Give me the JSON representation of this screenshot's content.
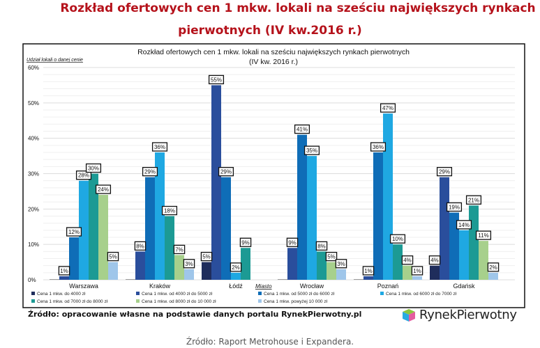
{
  "header": {
    "title_line1": "Rozkład ofertowych cen 1 mkw. lokali na sześciu największych rynkach",
    "title_line2": "pierwotnych (IV kw.2016 r.)"
  },
  "chart_data": {
    "type": "bar",
    "title_line1": "Rozkład ofertowych cen 1 mkw. lokali na sześciu największych rynkach pierwotnych",
    "title_line2": "(IV kw. 2016 r.)",
    "ylabel": "Udział lokali o danej cenie",
    "xlabel": "Miasto",
    "ylim": [
      0,
      60
    ],
    "yticks": [
      "0%",
      "10%",
      "20%",
      "30%",
      "40%",
      "50%",
      "60%"
    ],
    "grid": true,
    "legend_placement": "bottom",
    "categories": [
      "Warszawa",
      "Kraków",
      "Łódź",
      "Wrocław",
      "Poznań",
      "Gdańsk"
    ],
    "series": [
      {
        "name": "Cena 1 mkw. do 4000 zł",
        "color": "#1f2d5c",
        "values": [
          0,
          0,
          5,
          0,
          0,
          4
        ]
      },
      {
        "name": "Cena 1 mkw. od 4000 zł do 5000 zł",
        "color": "#2a4e9c",
        "values": [
          1,
          8,
          55,
          9,
          1,
          29
        ]
      },
      {
        "name": "Cena 1 mkw. od 5000 zł do 6000 zł",
        "color": "#0f6db7",
        "values": [
          12,
          29,
          29,
          41,
          36,
          19
        ]
      },
      {
        "name": "Cena 1 mkw. od 6000 zł do 7000 zł",
        "color": "#1fa8e2",
        "values": [
          28,
          36,
          2,
          35,
          47,
          14
        ]
      },
      {
        "name": "Cena 1 mkw. od 7000 zł do 8000 zł",
        "color": "#1c9a94",
        "values": [
          30,
          18,
          9,
          8,
          10,
          21
        ]
      },
      {
        "name": "Cena 1 mkw. od 8000 zł do 10 000 zł",
        "color": "#a7d08c",
        "values": [
          24,
          7,
          0,
          5,
          4,
          11
        ]
      },
      {
        "name": "Cena 1 mkw. powyżej 10 000 zł",
        "color": "#9fc6ea",
        "values": [
          5,
          3,
          0,
          3,
          1,
          2
        ]
      }
    ]
  },
  "footer": {
    "source": "Źródło: opracowanie własne na podstawie danych portalu RynekPierwotny.pl",
    "logo_text": "RynekPierwotny",
    "bottom_source": "Źródło: Raport Metrohouse i Expandera."
  },
  "colors": {
    "title": "#b5121b"
  }
}
